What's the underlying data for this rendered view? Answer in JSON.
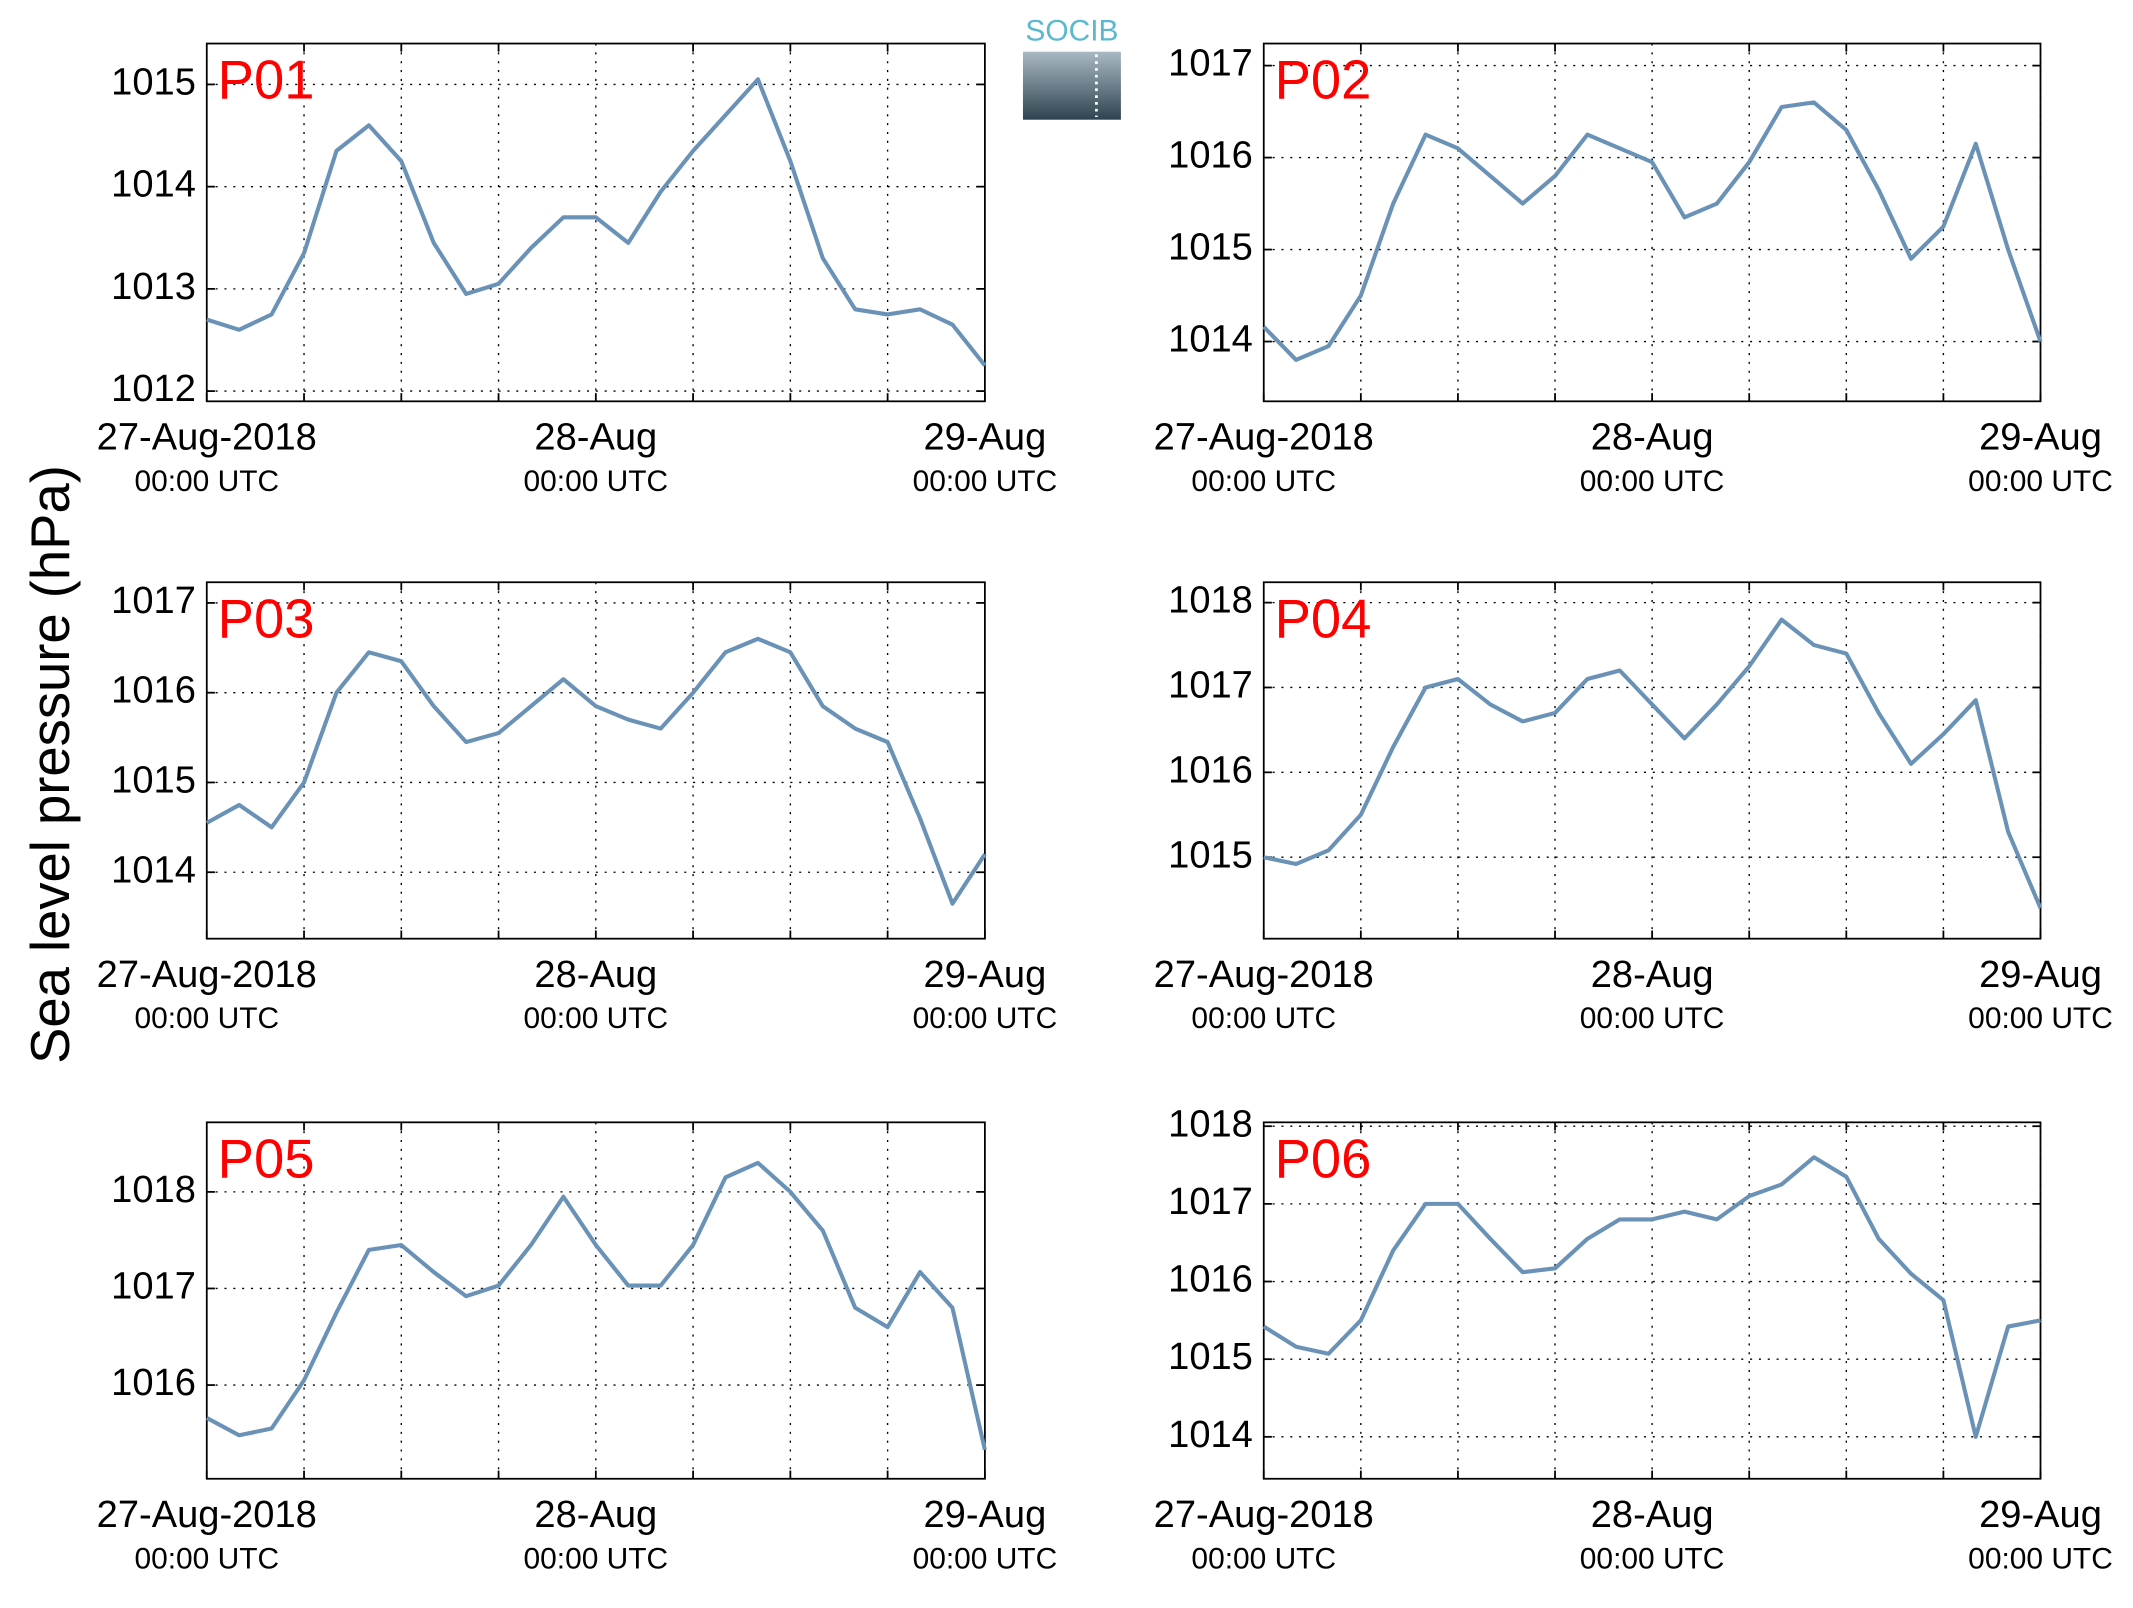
{
  "ylabel": "Sea level pressure (hPa)",
  "logo": "SOCIB",
  "chart_data": [
    {
      "type": "line",
      "title": "P01",
      "color": "#6a92b6",
      "grid": true,
      "x": [
        0,
        2,
        4,
        6,
        8,
        10,
        12,
        14,
        16,
        18,
        20,
        22,
        24,
        26,
        28,
        30,
        32,
        34,
        36,
        38,
        40,
        42,
        44,
        46,
        48
      ],
      "values": [
        1012.7,
        1012.6,
        1012.75,
        1013.35,
        1014.35,
        1014.6,
        1014.25,
        1013.45,
        1012.95,
        1013.05,
        1013.4,
        1013.7,
        1013.7,
        1013.45,
        1013.95,
        1014.35,
        1014.7,
        1015.05,
        1014.25,
        1013.3,
        1012.8,
        1012.75,
        1012.8,
        1012.65,
        1012.25
      ],
      "xlim": [
        0,
        48
      ],
      "xticks": [
        {
          "value": 0,
          "label": "27-Aug-2018",
          "sublabel": "00:00 UTC"
        },
        {
          "value": 24,
          "label": "28-Aug",
          "sublabel": "00:00 UTC"
        },
        {
          "value": 48,
          "label": "29-Aug",
          "sublabel": "00:00 UTC"
        }
      ],
      "xminor": [
        6,
        12,
        18,
        30,
        36,
        42
      ],
      "ylim": [
        1011.9,
        1015.4
      ],
      "yticks": [
        1012,
        1013,
        1014,
        1015
      ]
    },
    {
      "type": "line",
      "title": "P02",
      "color": "#6a92b6",
      "grid": true,
      "x": [
        0,
        2,
        4,
        6,
        8,
        10,
        12,
        14,
        16,
        18,
        20,
        22,
        24,
        26,
        28,
        30,
        32,
        34,
        36,
        38,
        40,
        42,
        44,
        46,
        48
      ],
      "values": [
        1014.16,
        1013.8,
        1013.95,
        1014.5,
        1015.5,
        1016.25,
        1016.1,
        1015.8,
        1015.5,
        1015.8,
        1016.25,
        1016.1,
        1015.95,
        1015.35,
        1015.5,
        1015.95,
        1016.55,
        1016.6,
        1016.3,
        1015.65,
        1014.9,
        1015.25,
        1016.15,
        1015.0,
        1014.0
      ],
      "xlim": [
        0,
        48
      ],
      "xticks": [
        {
          "value": 0,
          "label": "27-Aug-2018",
          "sublabel": "00:00 UTC"
        },
        {
          "value": 24,
          "label": "28-Aug",
          "sublabel": "00:00 UTC"
        },
        {
          "value": 48,
          "label": "29-Aug",
          "sublabel": "00:00 UTC"
        }
      ],
      "xminor": [
        6,
        12,
        18,
        30,
        36,
        42
      ],
      "ylim": [
        1013.35,
        1017.24
      ],
      "yticks": [
        1014,
        1015,
        1016,
        1017
      ]
    },
    {
      "type": "line",
      "title": "P03",
      "color": "#6a92b6",
      "grid": true,
      "x": [
        0,
        2,
        4,
        6,
        8,
        10,
        12,
        14,
        16,
        18,
        20,
        22,
        24,
        26,
        28,
        30,
        32,
        34,
        36,
        38,
        40,
        42,
        44,
        46,
        48
      ],
      "values": [
        1014.55,
        1014.75,
        1014.5,
        1015.0,
        1016.0,
        1016.45,
        1016.35,
        1015.85,
        1015.45,
        1015.55,
        1015.85,
        1016.15,
        1015.85,
        1015.7,
        1015.6,
        1016.0,
        1016.45,
        1016.6,
        1016.45,
        1015.85,
        1015.6,
        1015.45,
        1014.6,
        1013.65,
        1014.2
      ],
      "xlim": [
        0,
        48
      ],
      "xticks": [
        {
          "value": 0,
          "label": "27-Aug-2018",
          "sublabel": "00:00 UTC"
        },
        {
          "value": 24,
          "label": "28-Aug",
          "sublabel": "00:00 UTC"
        },
        {
          "value": 48,
          "label": "29-Aug",
          "sublabel": "00:00 UTC"
        }
      ],
      "xminor": [
        6,
        12,
        18,
        30,
        36,
        42
      ],
      "ylim": [
        1013.26,
        1017.23
      ],
      "yticks": [
        1014,
        1015,
        1016,
        1017
      ]
    },
    {
      "type": "line",
      "title": "P04",
      "color": "#6a92b6",
      "grid": true,
      "x": [
        0,
        2,
        4,
        6,
        8,
        10,
        12,
        14,
        16,
        18,
        20,
        22,
        24,
        26,
        28,
        30,
        32,
        34,
        36,
        38,
        40,
        42,
        44,
        46,
        48
      ],
      "values": [
        1015.0,
        1014.92,
        1015.08,
        1015.5,
        1016.3,
        1017.0,
        1017.1,
        1016.8,
        1016.6,
        1016.7,
        1017.1,
        1017.2,
        1016.8,
        1016.4,
        1016.8,
        1017.25,
        1017.8,
        1017.5,
        1017.4,
        1016.7,
        1016.1,
        1016.45,
        1016.85,
        1015.3,
        1014.4
      ],
      "xlim": [
        0,
        48
      ],
      "xticks": [
        {
          "value": 0,
          "label": "27-Aug-2018",
          "sublabel": "00:00 UTC"
        },
        {
          "value": 24,
          "label": "28-Aug",
          "sublabel": "00:00 UTC"
        },
        {
          "value": 48,
          "label": "29-Aug",
          "sublabel": "00:00 UTC"
        }
      ],
      "xminor": [
        6,
        12,
        18,
        30,
        36,
        42
      ],
      "ylim": [
        1014.04,
        1018.24
      ],
      "yticks": [
        1015,
        1016,
        1017,
        1018
      ]
    },
    {
      "type": "line",
      "title": "P05",
      "color": "#6a92b6",
      "grid": true,
      "x": [
        0,
        2,
        4,
        6,
        8,
        10,
        12,
        14,
        16,
        18,
        20,
        22,
        24,
        26,
        28,
        30,
        32,
        34,
        36,
        38,
        40,
        42,
        44,
        46,
        48
      ],
      "values": [
        1015.66,
        1015.48,
        1015.55,
        1016.05,
        1016.75,
        1017.4,
        1017.45,
        1017.17,
        1016.92,
        1017.03,
        1017.45,
        1017.95,
        1017.45,
        1017.03,
        1017.03,
        1017.45,
        1018.15,
        1018.3,
        1018.0,
        1017.6,
        1016.8,
        1016.6,
        1017.17,
        1016.8,
        1015.33
      ],
      "xlim": [
        0,
        48
      ],
      "xticks": [
        {
          "value": 0,
          "label": "27-Aug-2018",
          "sublabel": "00:00 UTC"
        },
        {
          "value": 24,
          "label": "28-Aug",
          "sublabel": "00:00 UTC"
        },
        {
          "value": 48,
          "label": "29-Aug",
          "sublabel": "00:00 UTC"
        }
      ],
      "xminor": [
        6,
        12,
        18,
        30,
        36,
        42
      ],
      "ylim": [
        1015.03,
        1018.72
      ],
      "yticks": [
        1016,
        1017,
        1018
      ]
    },
    {
      "type": "line",
      "title": "P06",
      "color": "#6a92b6",
      "grid": true,
      "x": [
        0,
        2,
        4,
        6,
        8,
        10,
        12,
        14,
        16,
        18,
        20,
        22,
        24,
        26,
        28,
        30,
        32,
        34,
        36,
        38,
        40,
        42,
        44,
        46,
        48
      ],
      "values": [
        1015.42,
        1015.16,
        1015.07,
        1015.5,
        1016.4,
        1017.0,
        1017.0,
        1016.55,
        1016.12,
        1016.17,
        1016.55,
        1016.8,
        1016.8,
        1016.9,
        1016.8,
        1017.1,
        1017.25,
        1017.6,
        1017.35,
        1016.55,
        1016.1,
        1015.76,
        1014.0,
        1015.42,
        1015.5
      ],
      "xlim": [
        0,
        48
      ],
      "xticks": [
        {
          "value": 0,
          "label": "27-Aug-2018",
          "sublabel": "00:00 UTC"
        },
        {
          "value": 24,
          "label": "28-Aug",
          "sublabel": "00:00 UTC"
        },
        {
          "value": 48,
          "label": "29-Aug",
          "sublabel": "00:00 UTC"
        }
      ],
      "xminor": [
        6,
        12,
        18,
        30,
        36,
        42
      ],
      "ylim": [
        1013.46,
        1018.05
      ],
      "yticks": [
        1014,
        1015,
        1016,
        1017,
        1018
      ]
    }
  ]
}
